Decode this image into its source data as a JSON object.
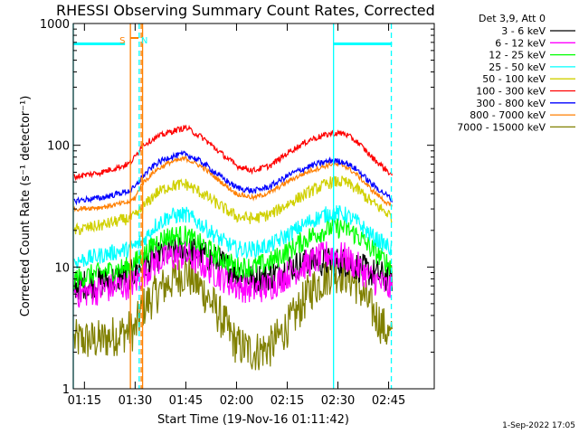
{
  "chart_data": {
    "type": "line",
    "title": "RHESSI Observing Summary Count Rates, Corrected",
    "xlabel": "Start Time (19-Nov-16 01:11:42)",
    "ylabel": "Corrected Count Rate (s⁻¹ detector⁻¹)",
    "x_unit": "minutes after 01:00 UT",
    "xlim": [
      71.7,
      178.5
    ],
    "ylim": [
      1,
      1000
    ],
    "yscale": "log",
    "x_ticks": [
      {
        "value": 75,
        "label": "01:15"
      },
      {
        "value": 90,
        "label": "01:30"
      },
      {
        "value": 105,
        "label": "01:45"
      },
      {
        "value": 120,
        "label": "02:00"
      },
      {
        "value": 135,
        "label": "02:15"
      },
      {
        "value": 150,
        "label": "02:30"
      },
      {
        "value": 165,
        "label": "02:45"
      }
    ],
    "y_ticks": [
      {
        "value": 1,
        "label": "1"
      },
      {
        "value": 10,
        "label": "10"
      },
      {
        "value": 100,
        "label": "100"
      },
      {
        "value": 1000,
        "label": "1000"
      }
    ],
    "legend_header": "Det 3,9, Att 0",
    "legend_position": "right",
    "date_stamp": "1-Sep-2022 17:05",
    "markers": [
      {
        "label": "S",
        "color": "#ff7f00",
        "x": 88.6,
        "x_end": 91.0
      },
      {
        "label": "N",
        "color": "#00ffff",
        "x": 91.2
      }
    ],
    "bars": [
      {
        "x_start": 71.7,
        "x_end": 87.0,
        "y": 680,
        "color": "#00ffff"
      },
      {
        "x_start": 148.7,
        "x_end": 166.0,
        "y": 680,
        "color": "#00ffff"
      }
    ],
    "vlines": [
      {
        "x": 71.7,
        "color": "#00ffff",
        "style": "solid"
      },
      {
        "x": 88.6,
        "color": "#ff7f00",
        "style": "solid"
      },
      {
        "x": 91.2,
        "color": "#00ffff",
        "style": "dashed"
      },
      {
        "x": 91.8,
        "color": "#ff7f00",
        "style": "dashed"
      },
      {
        "x": 92.2,
        "color": "#ff7f00",
        "style": "solid"
      },
      {
        "x": 148.7,
        "color": "#00ffff",
        "style": "solid"
      },
      {
        "x": 165.8,
        "color": "#00ffff",
        "style": "dashed"
      }
    ],
    "series": [
      {
        "name": "3 - 6 keV",
        "color": "#000000",
        "noise": 0.25,
        "points": [
          [
            72,
            7
          ],
          [
            80,
            7.5
          ],
          [
            88,
            8.5
          ],
          [
            90,
            9
          ],
          [
            92,
            10
          ],
          [
            96,
            12
          ],
          [
            100,
            13
          ],
          [
            105,
            14
          ],
          [
            110,
            12.5
          ],
          [
            115,
            11
          ],
          [
            120,
            9
          ],
          [
            125,
            8
          ],
          [
            130,
            8.5
          ],
          [
            136,
            10
          ],
          [
            142,
            11
          ],
          [
            148,
            11
          ],
          [
            152,
            11
          ],
          [
            156,
            10
          ],
          [
            160,
            9
          ],
          [
            166,
            8
          ]
        ]
      },
      {
        "name": "6 - 12 keV",
        "color": "#ff00ff",
        "noise": 0.25,
        "points": [
          [
            72,
            6
          ],
          [
            80,
            6.5
          ],
          [
            88,
            7.2
          ],
          [
            90,
            7.5
          ],
          [
            92,
            8.5
          ],
          [
            96,
            11
          ],
          [
            100,
            12
          ],
          [
            105,
            12.5
          ],
          [
            110,
            10.5
          ],
          [
            115,
            8.5
          ],
          [
            120,
            7
          ],
          [
            125,
            6.5
          ],
          [
            130,
            7
          ],
          [
            136,
            9
          ],
          [
            142,
            11
          ],
          [
            148,
            13
          ],
          [
            152,
            12
          ],
          [
            156,
            10
          ],
          [
            160,
            8
          ],
          [
            166,
            6.5
          ]
        ]
      },
      {
        "name": "12 - 25 keV",
        "color": "#00ff00",
        "noise": 0.18,
        "points": [
          [
            72,
            8
          ],
          [
            80,
            9
          ],
          [
            88,
            10
          ],
          [
            90,
            11
          ],
          [
            92,
            12
          ],
          [
            96,
            16
          ],
          [
            100,
            18
          ],
          [
            105,
            18
          ],
          [
            110,
            15
          ],
          [
            115,
            12
          ],
          [
            120,
            10
          ],
          [
            125,
            10
          ],
          [
            130,
            11
          ],
          [
            136,
            14
          ],
          [
            142,
            18
          ],
          [
            148,
            21
          ],
          [
            152,
            21
          ],
          [
            156,
            18
          ],
          [
            160,
            14
          ],
          [
            166,
            10
          ]
        ]
      },
      {
        "name": "25 - 50 keV",
        "color": "#00ffff",
        "noise": 0.14,
        "points": [
          [
            72,
            11
          ],
          [
            80,
            12.5
          ],
          [
            88,
            14
          ],
          [
            90,
            15
          ],
          [
            92,
            16
          ],
          [
            96,
            22
          ],
          [
            100,
            26
          ],
          [
            105,
            27
          ],
          [
            110,
            22
          ],
          [
            115,
            17
          ],
          [
            120,
            14
          ],
          [
            125,
            14
          ],
          [
            130,
            15
          ],
          [
            136,
            19
          ],
          [
            142,
            24
          ],
          [
            148,
            28
          ],
          [
            152,
            27
          ],
          [
            156,
            23
          ],
          [
            160,
            18
          ],
          [
            166,
            14
          ]
        ]
      },
      {
        "name": "50 - 100 keV",
        "color": "#d0d000",
        "noise": 0.1,
        "points": [
          [
            72,
            20
          ],
          [
            80,
            22
          ],
          [
            88,
            25
          ],
          [
            90,
            26
          ],
          [
            92,
            30
          ],
          [
            96,
            40
          ],
          [
            100,
            46
          ],
          [
            105,
            48
          ],
          [
            110,
            40
          ],
          [
            115,
            32
          ],
          [
            120,
            26
          ],
          [
            125,
            25
          ],
          [
            130,
            27
          ],
          [
            136,
            34
          ],
          [
            142,
            42
          ],
          [
            148,
            50
          ],
          [
            152,
            50
          ],
          [
            156,
            43
          ],
          [
            160,
            34
          ],
          [
            166,
            26
          ]
        ]
      },
      {
        "name": "100 - 300 keV",
        "color": "#ff0000",
        "noise": 0.05,
        "points": [
          [
            72,
            55
          ],
          [
            80,
            60
          ],
          [
            88,
            70
          ],
          [
            90,
            80
          ],
          [
            92,
            100
          ],
          [
            96,
            115
          ],
          [
            100,
            128
          ],
          [
            105,
            140
          ],
          [
            110,
            115
          ],
          [
            115,
            88
          ],
          [
            120,
            68
          ],
          [
            125,
            62
          ],
          [
            130,
            68
          ],
          [
            136,
            90
          ],
          [
            142,
            112
          ],
          [
            148,
            125
          ],
          [
            152,
            125
          ],
          [
            156,
            105
          ],
          [
            160,
            80
          ],
          [
            166,
            57
          ]
        ]
      },
      {
        "name": "300 - 800 keV",
        "color": "#0000ff",
        "noise": 0.05,
        "points": [
          [
            72,
            35
          ],
          [
            80,
            37
          ],
          [
            88,
            42
          ],
          [
            90,
            45
          ],
          [
            92,
            55
          ],
          [
            96,
            70
          ],
          [
            100,
            80
          ],
          [
            105,
            85
          ],
          [
            110,
            72
          ],
          [
            115,
            56
          ],
          [
            120,
            45
          ],
          [
            125,
            42
          ],
          [
            130,
            46
          ],
          [
            136,
            58
          ],
          [
            142,
            68
          ],
          [
            148,
            75
          ],
          [
            152,
            73
          ],
          [
            156,
            62
          ],
          [
            160,
            48
          ],
          [
            166,
            36
          ]
        ]
      },
      {
        "name": "800 - 7000 keV",
        "color": "#ff7f00",
        "noise": 0.04,
        "points": [
          [
            72,
            30
          ],
          [
            80,
            31
          ],
          [
            88,
            34
          ],
          [
            90,
            37
          ],
          [
            92,
            48
          ],
          [
            96,
            62
          ],
          [
            100,
            72
          ],
          [
            105,
            78
          ],
          [
            110,
            66
          ],
          [
            115,
            51
          ],
          [
            120,
            40
          ],
          [
            125,
            37
          ],
          [
            130,
            41
          ],
          [
            136,
            52
          ],
          [
            142,
            62
          ],
          [
            148,
            70
          ],
          [
            152,
            68
          ],
          [
            156,
            56
          ],
          [
            160,
            43
          ],
          [
            166,
            31
          ]
        ]
      },
      {
        "name": "7000 - 15000 keV",
        "color": "#808000",
        "noise": 0.35,
        "points": [
          [
            72,
            2.5
          ],
          [
            80,
            2.5
          ],
          [
            88,
            3
          ],
          [
            90,
            3
          ],
          [
            92,
            4.5
          ],
          [
            96,
            6
          ],
          [
            100,
            7.5
          ],
          [
            105,
            9
          ],
          [
            110,
            6.5
          ],
          [
            115,
            4
          ],
          [
            120,
            2.3
          ],
          [
            125,
            2
          ],
          [
            130,
            2.2
          ],
          [
            136,
            3.5
          ],
          [
            142,
            6.5
          ],
          [
            148,
            9
          ],
          [
            152,
            9
          ],
          [
            156,
            7
          ],
          [
            160,
            4.5
          ],
          [
            166,
            2.5
          ]
        ]
      }
    ]
  }
}
